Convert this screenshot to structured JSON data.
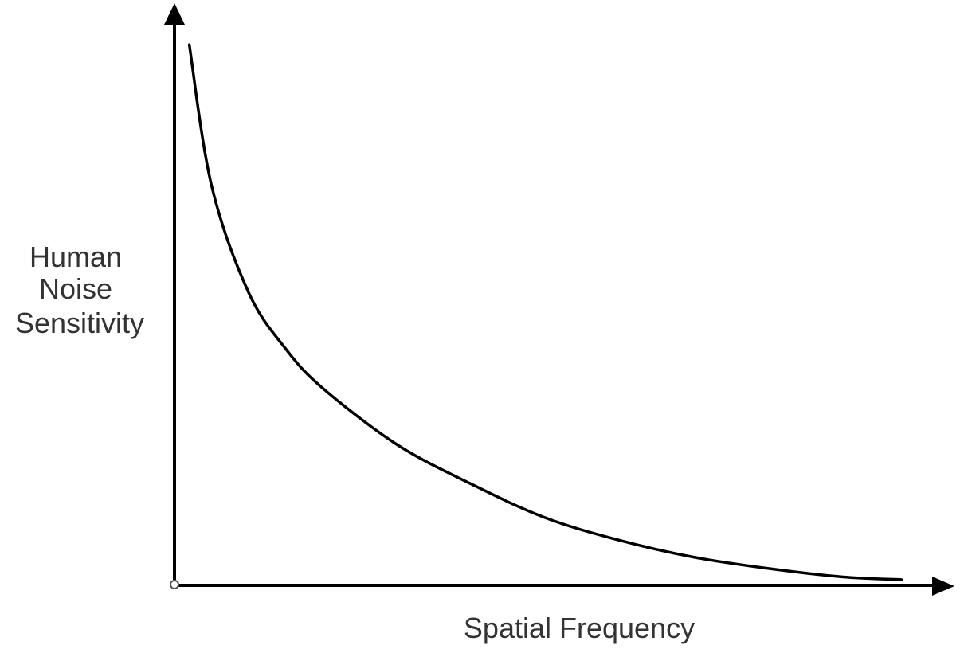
{
  "chart_data": {
    "type": "line",
    "title": "",
    "xlabel": "Spatial Frequency",
    "ylabel_lines": [
      "Human",
      "Noise",
      "Sensitivity"
    ],
    "xlim": [
      0,
      1
    ],
    "ylim": [
      0,
      1
    ],
    "grid": false,
    "axis_color": "#000000",
    "line_color": "#000000",
    "series": [
      {
        "x": [
          0.02,
          0.05,
          0.1,
          0.15,
          0.2,
          0.3,
          0.4,
          0.5,
          0.6,
          0.7,
          0.8,
          0.9,
          0.98
        ],
        "values": [
          0.96,
          0.71,
          0.52,
          0.42,
          0.35,
          0.25,
          0.18,
          0.12,
          0.08,
          0.05,
          0.03,
          0.015,
          0.01
        ]
      }
    ]
  }
}
